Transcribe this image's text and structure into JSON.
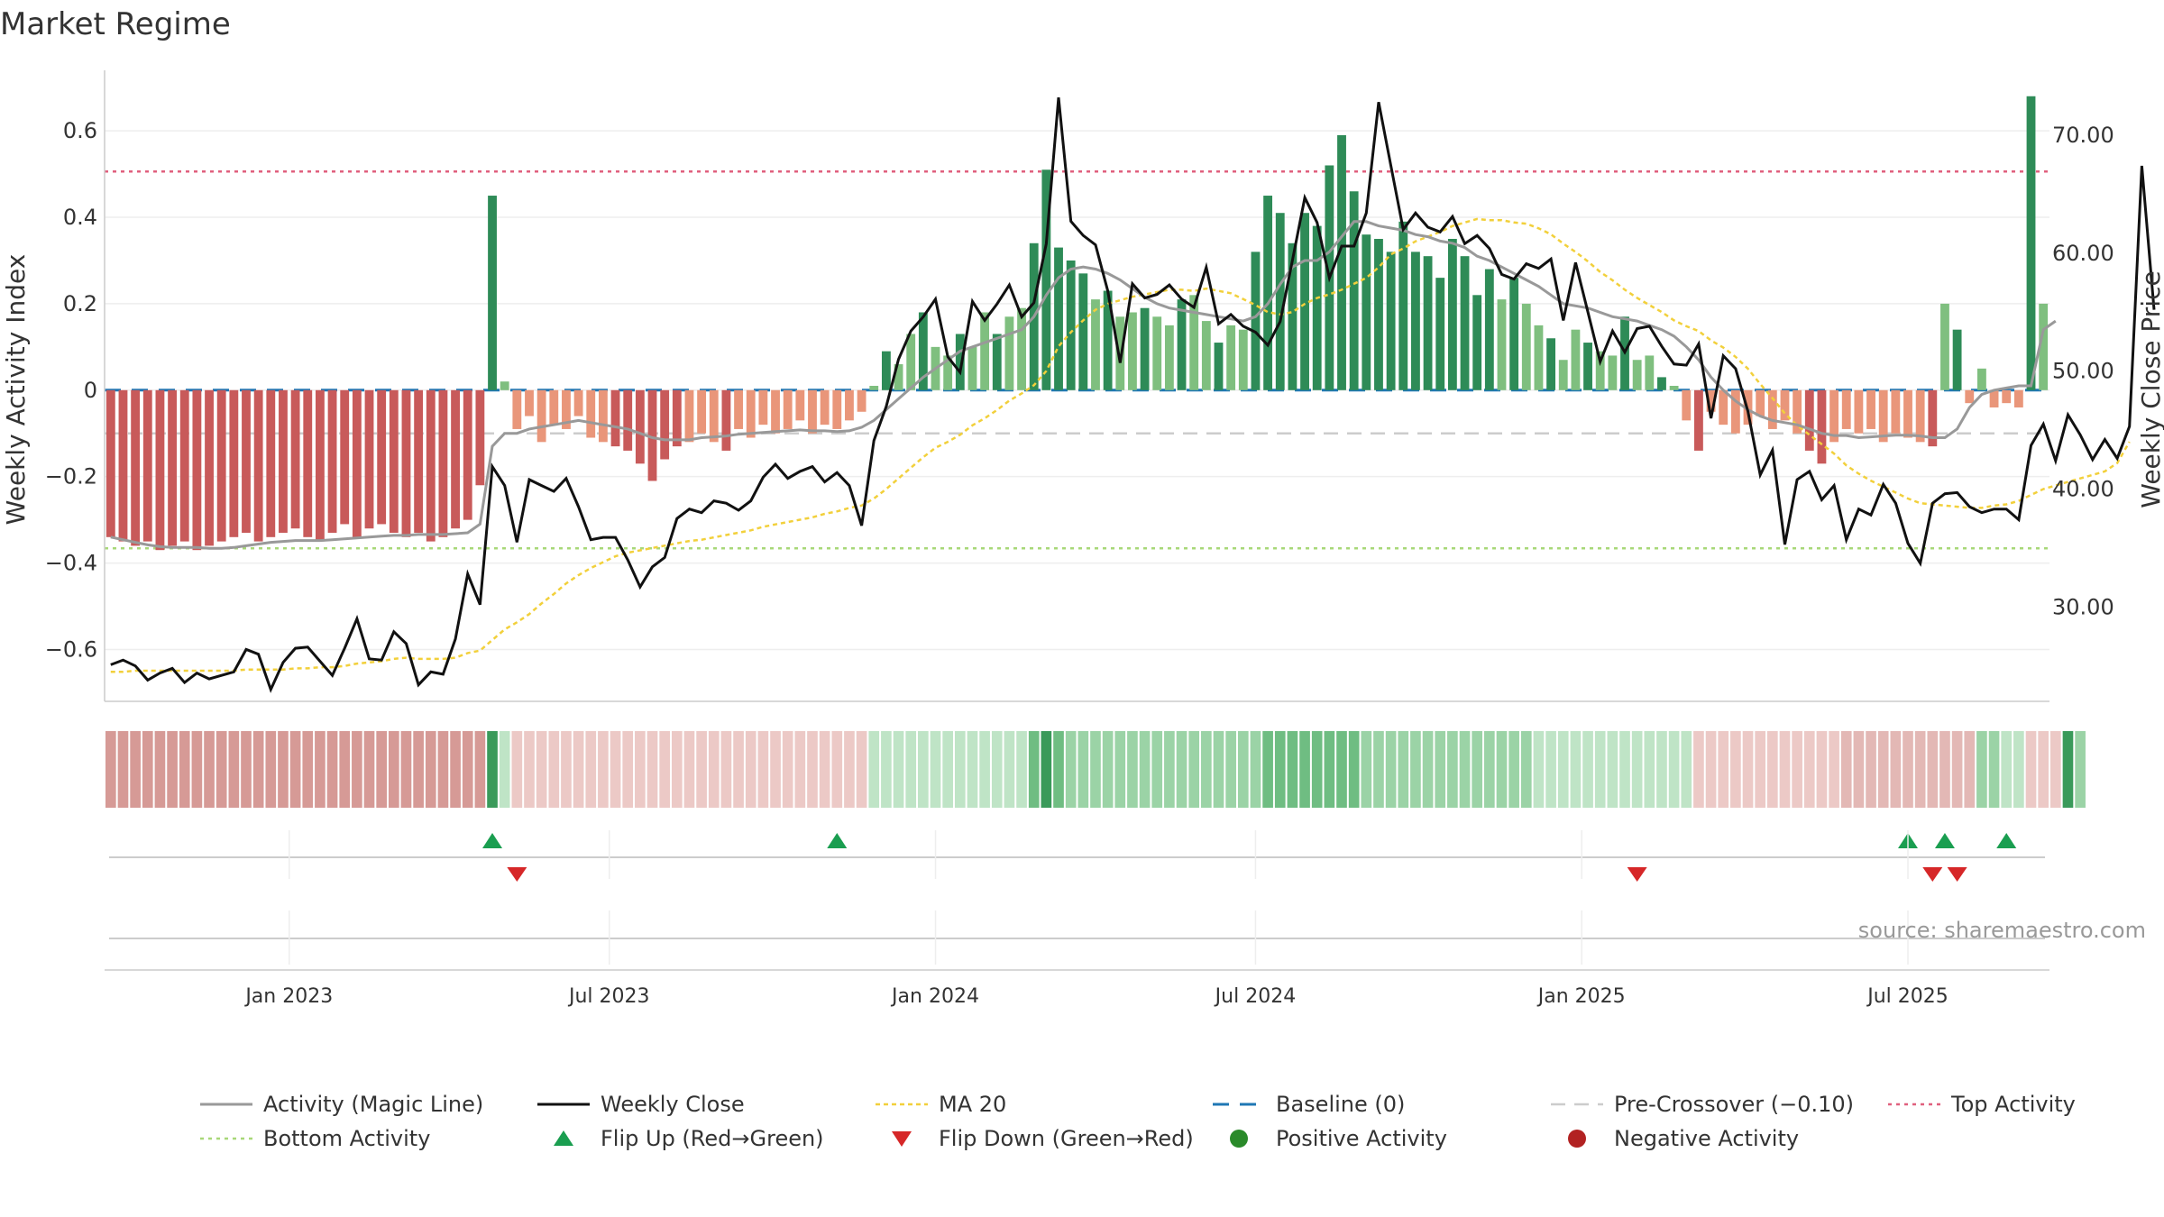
{
  "chart_data": {
    "type": "bar",
    "title": "Market Regime",
    "ylabel_left": "Weekly Activity Index",
    "ylabel_right": "Weekly Close Price",
    "source": "source: sharemaestro.com",
    "y_left_ticks": [
      "0.6",
      "0.4",
      "0.2",
      "0",
      "−0.2",
      "−0.4",
      "−0.6"
    ],
    "y_left_tick_values": [
      0.6,
      0.4,
      0.2,
      0,
      -0.2,
      -0.4,
      -0.6
    ],
    "y_left_lim": [
      -0.72,
      0.74
    ],
    "y_right_ticks": [
      "70.00",
      "60.00",
      "50.00",
      "40.00",
      "30.00"
    ],
    "y_right_tick_values": [
      70,
      60,
      50,
      40,
      30
    ],
    "y_right_lim": [
      22,
      75.5
    ],
    "x_ticks": [
      "Jan 2023",
      "Jul 2023",
      "Jan 2024",
      "Jul 2024",
      "Jan 2025",
      "Jul 2025"
    ],
    "x_tick_weeks": [
      15,
      41,
      67.5,
      93.5,
      120,
      146.5
    ],
    "week_count": 158,
    "activity": [
      -0.34,
      -0.35,
      -0.36,
      -0.35,
      -0.37,
      -0.36,
      -0.35,
      -0.37,
      -0.36,
      -0.35,
      -0.34,
      -0.33,
      -0.35,
      -0.34,
      -0.33,
      -0.32,
      -0.34,
      -0.35,
      -0.33,
      -0.31,
      -0.34,
      -0.32,
      -0.31,
      -0.33,
      -0.34,
      -0.33,
      -0.35,
      -0.34,
      -0.32,
      -0.3,
      -0.22,
      0.45,
      0.02,
      -0.09,
      -0.06,
      -0.12,
      -0.08,
      -0.09,
      -0.06,
      -0.11,
      -0.12,
      -0.13,
      -0.14,
      -0.17,
      -0.21,
      -0.16,
      -0.13,
      -0.12,
      -0.1,
      -0.12,
      -0.14,
      -0.09,
      -0.11,
      -0.08,
      -0.1,
      -0.09,
      -0.07,
      -0.1,
      -0.08,
      -0.09,
      -0.07,
      -0.05,
      0.01,
      0.09,
      0.06,
      0.13,
      0.18,
      0.1,
      0.08,
      0.13,
      0.1,
      0.18,
      0.13,
      0.17,
      0.19,
      0.34,
      0.51,
      0.33,
      0.3,
      0.27,
      0.21,
      0.23,
      0.17,
      0.18,
      0.19,
      0.17,
      0.15,
      0.21,
      0.22,
      0.16,
      0.11,
      0.15,
      0.14,
      0.32,
      0.45,
      0.41,
      0.34,
      0.41,
      0.38,
      0.52,
      0.59,
      0.46,
      0.36,
      0.35,
      0.32,
      0.39,
      0.32,
      0.31,
      0.26,
      0.35,
      0.31,
      0.22,
      0.28,
      0.21,
      0.26,
      0.2,
      0.15,
      0.12,
      0.07,
      0.14,
      0.11,
      0.09,
      0.08,
      0.17,
      0.07,
      0.08,
      0.03,
      0.01,
      -0.07,
      -0.14,
      -0.05,
      -0.08,
      -0.1,
      -0.08,
      -0.06,
      -0.09,
      -0.07,
      -0.1,
      -0.14,
      -0.17,
      -0.12,
      -0.09,
      -0.1,
      -0.09,
      -0.12,
      -0.1,
      -0.11,
      -0.12,
      -0.13,
      0.2,
      0.14,
      -0.03,
      0.05,
      -0.04,
      -0.03,
      -0.04,
      0.68,
      0.2
    ],
    "weekly_close": [
      25.1,
      25.5,
      25.0,
      23.8,
      24.4,
      24.8,
      23.6,
      24.4,
      23.9,
      24.2,
      24.5,
      26.4,
      26.0,
      23.0,
      25.3,
      26.5,
      26.6,
      25.4,
      24.2,
      26.5,
      29.0,
      25.6,
      25.5,
      27.9,
      26.9,
      23.4,
      24.5,
      24.3,
      27.3,
      32.8,
      30.2,
      41.9,
      40.3,
      35.5,
      40.8,
      40.3,
      39.8,
      40.9,
      38.5,
      35.7,
      35.9,
      35.9,
      34.0,
      31.7,
      33.4,
      34.2,
      37.5,
      38.3,
      38.0,
      39.0,
      38.8,
      38.2,
      39.0,
      41.0,
      42.1,
      40.9,
      41.5,
      41.9,
      40.6,
      41.4,
      40.3,
      36.9,
      44.1,
      47.0,
      51.0,
      53.4,
      54.6,
      56.1,
      51.2,
      49.9,
      55.9,
      54.3,
      55.7,
      57.3,
      54.6,
      55.8,
      60.8,
      73.2,
      62.7,
      61.5,
      60.7,
      56.8,
      50.7,
      57.4,
      56.2,
      56.5,
      57.3,
      56.1,
      55.4,
      58.8,
      54.0,
      54.8,
      53.8,
      53.3,
      52.2,
      54.2,
      59.4,
      64.7,
      62.6,
      57.9,
      60.6,
      60.6,
      63.4,
      72.8,
      67.4,
      62.0,
      63.4,
      62.2,
      61.8,
      63.1,
      60.8,
      61.5,
      60.4,
      58.2,
      57.8,
      59.1,
      58.7,
      59.5,
      54.3,
      59.2,
      55.0,
      50.8,
      53.4,
      51.6,
      53.6,
      53.8,
      52.1,
      50.6,
      50.5,
      52.3,
      46.0,
      51.3,
      50.2,
      46.6,
      41.2,
      43.3,
      35.3,
      40.8,
      41.5,
      39.1,
      40.3,
      35.7,
      38.3,
      37.8,
      40.4,
      38.8,
      35.4,
      33.7,
      38.8,
      39.6,
      39.7,
      38.5,
      38.0,
      38.3,
      38.3,
      37.4,
      43.7,
      45.5,
      42.4,
      46.3,
      44.6,
      42.5,
      44.2,
      42.6,
      45.3,
      67.4,
      55.2
    ],
    "magic_line": [
      -0.34,
      -0.346,
      -0.352,
      -0.358,
      -0.362,
      -0.364,
      -0.364,
      -0.364,
      -0.366,
      -0.366,
      -0.364,
      -0.36,
      -0.356,
      -0.352,
      -0.35,
      -0.348,
      -0.348,
      -0.348,
      -0.346,
      -0.344,
      -0.342,
      -0.34,
      -0.338,
      -0.336,
      -0.336,
      -0.334,
      -0.334,
      -0.334,
      -0.332,
      -0.33,
      -0.31,
      -0.13,
      -0.1,
      -0.1,
      -0.09,
      -0.085,
      -0.08,
      -0.075,
      -0.07,
      -0.075,
      -0.08,
      -0.085,
      -0.09,
      -0.1,
      -0.11,
      -0.115,
      -0.115,
      -0.115,
      -0.11,
      -0.108,
      -0.106,
      -0.102,
      -0.1,
      -0.098,
      -0.096,
      -0.094,
      -0.092,
      -0.094,
      -0.094,
      -0.096,
      -0.094,
      -0.086,
      -0.07,
      -0.045,
      -0.02,
      0.005,
      0.03,
      0.05,
      0.07,
      0.09,
      0.1,
      0.11,
      0.12,
      0.13,
      0.14,
      0.17,
      0.22,
      0.26,
      0.28,
      0.285,
      0.28,
      0.27,
      0.255,
      0.235,
      0.215,
      0.2,
      0.19,
      0.185,
      0.18,
      0.175,
      0.17,
      0.165,
      0.16,
      0.17,
      0.2,
      0.245,
      0.285,
      0.3,
      0.3,
      0.32,
      0.355,
      0.39,
      0.39,
      0.38,
      0.375,
      0.37,
      0.36,
      0.355,
      0.345,
      0.34,
      0.33,
      0.31,
      0.3,
      0.285,
      0.27,
      0.255,
      0.24,
      0.22,
      0.2,
      0.195,
      0.19,
      0.18,
      0.17,
      0.165,
      0.16,
      0.15,
      0.14,
      0.125,
      0.1,
      0.07,
      0.03,
      0.0,
      -0.025,
      -0.045,
      -0.06,
      -0.07,
      -0.075,
      -0.08,
      -0.09,
      -0.1,
      -0.105,
      -0.105,
      -0.11,
      -0.108,
      -0.106,
      -0.104,
      -0.104,
      -0.106,
      -0.11,
      -0.11,
      -0.09,
      -0.04,
      -0.01,
      0.0,
      0.005,
      0.01,
      0.01,
      0.14,
      0.16
    ],
    "ma20": [
      24.5,
      24.5,
      24.6,
      24.6,
      24.6,
      24.6,
      24.6,
      24.6,
      24.6,
      24.6,
      24.6,
      24.7,
      24.7,
      24.7,
      24.7,
      24.8,
      24.8,
      24.9,
      24.9,
      25.0,
      25.2,
      25.3,
      25.4,
      25.6,
      25.7,
      25.6,
      25.6,
      25.6,
      25.7,
      26.1,
      26.3,
      27.2,
      28.1,
      28.7,
      29.4,
      30.3,
      31.1,
      32.0,
      32.7,
      33.3,
      33.8,
      34.3,
      34.6,
      34.8,
      35.0,
      35.2,
      35.4,
      35.6,
      35.7,
      35.9,
      36.1,
      36.3,
      36.5,
      36.8,
      37.0,
      37.2,
      37.4,
      37.6,
      37.9,
      38.1,
      38.4,
      38.6,
      39.2,
      40.0,
      40.9,
      41.8,
      42.7,
      43.5,
      44.0,
      44.6,
      45.4,
      46.0,
      46.7,
      47.5,
      48.1,
      48.8,
      50.0,
      52.1,
      53.3,
      54.3,
      55.2,
      55.7,
      56.0,
      56.3,
      56.5,
      56.7,
      56.9,
      56.9,
      56.8,
      57.0,
      56.8,
      56.6,
      56.1,
      55.6,
      55.0,
      54.8,
      55.0,
      55.7,
      56.2,
      56.5,
      56.9,
      57.4,
      57.9,
      58.8,
      59.9,
      60.4,
      61.0,
      61.4,
      61.8,
      62.3,
      62.6,
      62.9,
      62.8,
      62.8,
      62.6,
      62.5,
      62.1,
      61.6,
      60.8,
      60.1,
      59.3,
      58.4,
      57.7,
      56.9,
      56.2,
      55.6,
      55.0,
      54.3,
      53.8,
      53.4,
      52.6,
      52.0,
      51.2,
      50.2,
      48.9,
      47.7,
      46.4,
      45.4,
      44.6,
      43.8,
      43.0,
      42.0,
      41.3,
      40.7,
      40.2,
      39.7,
      39.2,
      38.8,
      38.7,
      38.6,
      38.5,
      38.4,
      38.4,
      38.6,
      38.7,
      39.0,
      39.5,
      40.0,
      40.3,
      40.6,
      40.9,
      41.2,
      41.5,
      42.2,
      44.0
    ],
    "regime_strip": [
      -1,
      -1,
      -1,
      -1,
      -1,
      -1,
      -1,
      -1,
      -1,
      -1,
      -1,
      -1,
      -1,
      -1,
      -1,
      -1,
      -1,
      -1,
      -1,
      -1,
      -1,
      -1,
      -1,
      -1,
      -1,
      -1,
      -1,
      -1,
      -1,
      -1,
      -1,
      1,
      0.3,
      -0.35,
      -0.35,
      -0.35,
      -0.35,
      -0.35,
      -0.35,
      -0.35,
      -0.35,
      -0.35,
      -0.35,
      -0.35,
      -0.35,
      -0.35,
      -0.35,
      -0.35,
      -0.35,
      -0.35,
      -0.35,
      -0.35,
      -0.35,
      -0.35,
      -0.35,
      -0.35,
      -0.35,
      -0.35,
      -0.35,
      -0.35,
      -0.35,
      -0.35,
      0.25,
      0.35,
      0.35,
      0.35,
      0.35,
      0.35,
      0.35,
      0.35,
      0.35,
      0.35,
      0.35,
      0.35,
      0.35,
      0.75,
      1,
      0.75,
      0.55,
      0.55,
      0.55,
      0.55,
      0.55,
      0.55,
      0.55,
      0.55,
      0.55,
      0.55,
      0.55,
      0.55,
      0.55,
      0.55,
      0.55,
      0.55,
      0.8,
      0.8,
      0.8,
      0.8,
      0.8,
      0.8,
      0.85,
      0.8,
      0.6,
      0.6,
      0.6,
      0.6,
      0.6,
      0.6,
      0.6,
      0.6,
      0.6,
      0.6,
      0.6,
      0.6,
      0.6,
      0.6,
      0.45,
      0.45,
      0.45,
      0.45,
      0.45,
      0.45,
      0.45,
      0.45,
      0.45,
      0.45,
      0.45,
      0.45,
      0.45,
      -0.35,
      -0.35,
      -0.35,
      -0.35,
      -0.35,
      -0.35,
      -0.35,
      -0.35,
      -0.35,
      -0.35,
      -0.35,
      -0.35,
      -0.45,
      -0.45,
      -0.45,
      -0.45,
      -0.45,
      -0.45,
      -0.45,
      -0.45,
      -0.45,
      -0.45,
      -0.45,
      0.55,
      0.55,
      0.3,
      0.3,
      -0.3,
      -0.3,
      -0.3,
      1,
      0.55
    ],
    "flip_up_weeks": [
      31,
      59,
      146,
      149,
      154
    ],
    "flip_down_weeks": [
      33,
      124,
      148,
      150
    ],
    "reference_lines": {
      "baseline": 0,
      "pre_crossover": -0.1,
      "top_activity": 0.506,
      "bottom_activity": -0.366
    },
    "colors": {
      "strong_green": "#2e8b57",
      "light_green": "#7fbf7f",
      "strong_red": "#c85a5a",
      "light_red": "#e9967a",
      "magic_line": "#999999",
      "close": "#111111",
      "ma20": "#f2d03b",
      "baseline": "#1f77b4",
      "pre_crossover": "#cccccc",
      "top_activity": "#e0607e",
      "bottom_activity": "#a8d878",
      "flip_up": "#1a9e50",
      "flip_down": "#d62728",
      "positive_activity": "#2a8a2a",
      "negative_activity": "#b22222"
    },
    "legend": [
      {
        "label": "Activity (Magic Line)",
        "icon": "line-solid-gray"
      },
      {
        "label": "Weekly Close",
        "icon": "line-solid-black"
      },
      {
        "label": "MA 20",
        "icon": "line-dotted-yellow"
      },
      {
        "label": "Baseline (0)",
        "icon": "line-dashed-blue"
      },
      {
        "label": "Pre-Crossover (−0.10)",
        "icon": "line-dashed-gray"
      },
      {
        "label": "Top Activity",
        "icon": "line-dotted-pink"
      },
      {
        "label": "Bottom Activity",
        "icon": "line-dotted-green"
      },
      {
        "label": "Flip Up (Red→Green)",
        "icon": "triangle-up-green"
      },
      {
        "label": "Flip Down (Green→Red)",
        "icon": "triangle-down-red"
      },
      {
        "label": "Positive Activity",
        "icon": "dot-green"
      },
      {
        "label": "Negative Activity",
        "icon": "dot-red"
      }
    ]
  }
}
